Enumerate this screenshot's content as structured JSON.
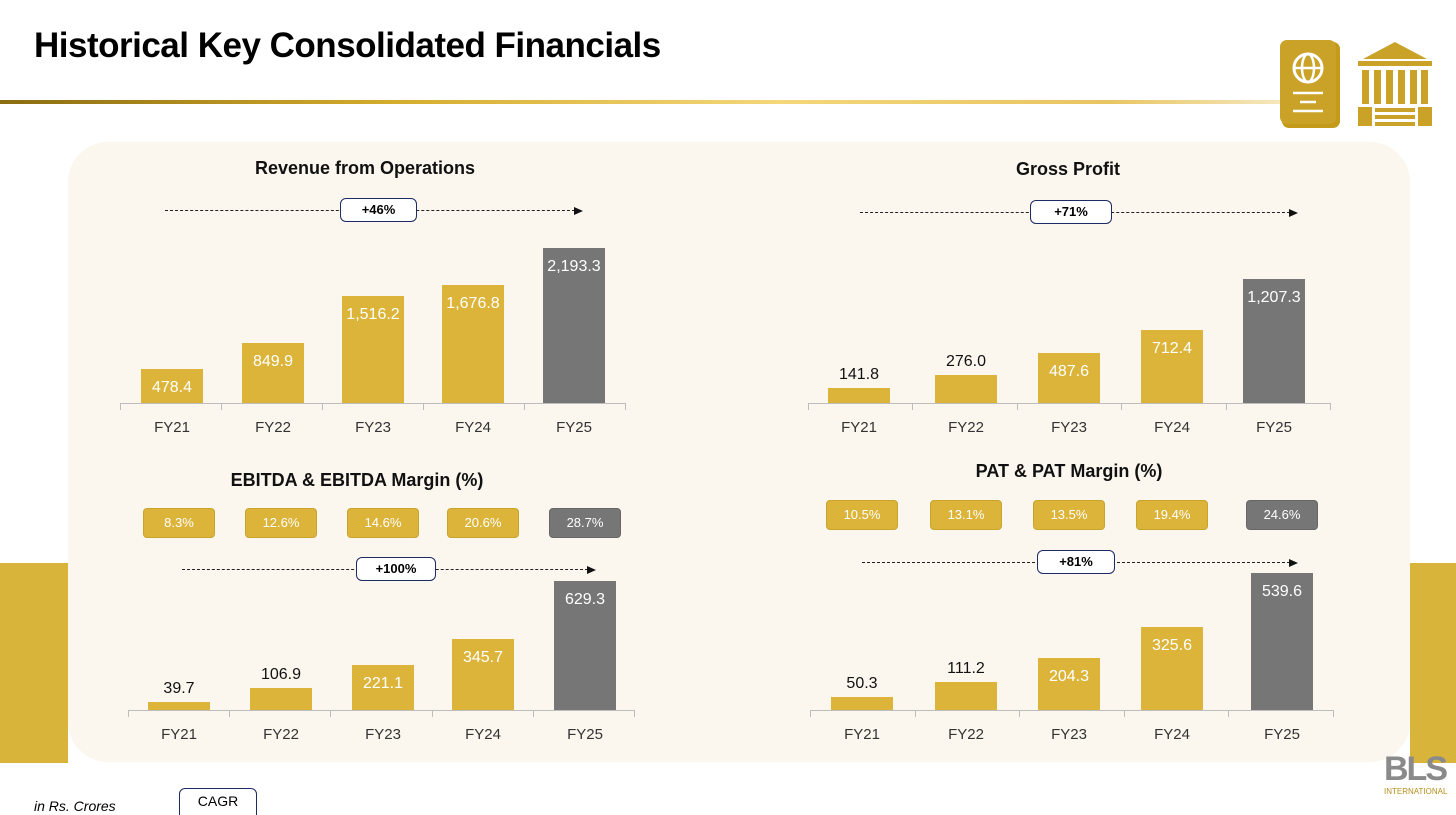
{
  "page": {
    "title": "Historical Key Consolidated Financials",
    "unit_note": "in Rs. Crores",
    "legend_label": "CAGR",
    "logo_text": "BLS",
    "logo_sub": "INTERNATIONAL"
  },
  "colors": {
    "gold": "#dcb43a",
    "grey": "#767676",
    "band": "#d9b43a",
    "panel": "#fbf7ef"
  },
  "chart_data": [
    {
      "type": "bar",
      "title": "Revenue from Operations",
      "categories": [
        "FY21",
        "FY22",
        "FY23",
        "FY24",
        "FY25"
      ],
      "values": [
        478.4,
        849.9,
        1516.2,
        1676.8,
        2193.3
      ],
      "labels": [
        "478.4",
        "849.9",
        "1,516.2",
        "1,676.8",
        "2,193.3"
      ],
      "cagr": "+46%"
    },
    {
      "type": "bar",
      "title": "Gross Profit",
      "categories": [
        "FY21",
        "FY22",
        "FY23",
        "FY24",
        "FY25"
      ],
      "values": [
        141.8,
        276.0,
        487.6,
        712.4,
        1207.3
      ],
      "labels": [
        "141.8",
        "276.0",
        "487.6",
        "712.4",
        "1,207.3"
      ],
      "cagr": "+71%"
    },
    {
      "type": "bar",
      "title": "EBITDA & EBITDA Margin (%)",
      "categories": [
        "FY21",
        "FY22",
        "FY23",
        "FY24",
        "FY25"
      ],
      "values": [
        39.7,
        106.9,
        221.1,
        345.7,
        629.3
      ],
      "labels": [
        "39.7",
        "106.9",
        "221.1",
        "345.7",
        "629.3"
      ],
      "margins": [
        "8.3%",
        "12.6%",
        "14.6%",
        "20.6%",
        "28.7%"
      ],
      "cagr": "+100%"
    },
    {
      "type": "bar",
      "title": "PAT & PAT Margin (%)",
      "categories": [
        "FY21",
        "FY22",
        "FY23",
        "FY24",
        "FY25"
      ],
      "values": [
        50.3,
        111.2,
        204.3,
        325.6,
        539.6
      ],
      "labels": [
        "50.3",
        "111.2",
        "204.3",
        "325.6",
        "539.6"
      ],
      "margins": [
        "10.5%",
        "13.1%",
        "13.5%",
        "19.4%",
        "24.6%"
      ],
      "cagr": "+81%"
    }
  ]
}
